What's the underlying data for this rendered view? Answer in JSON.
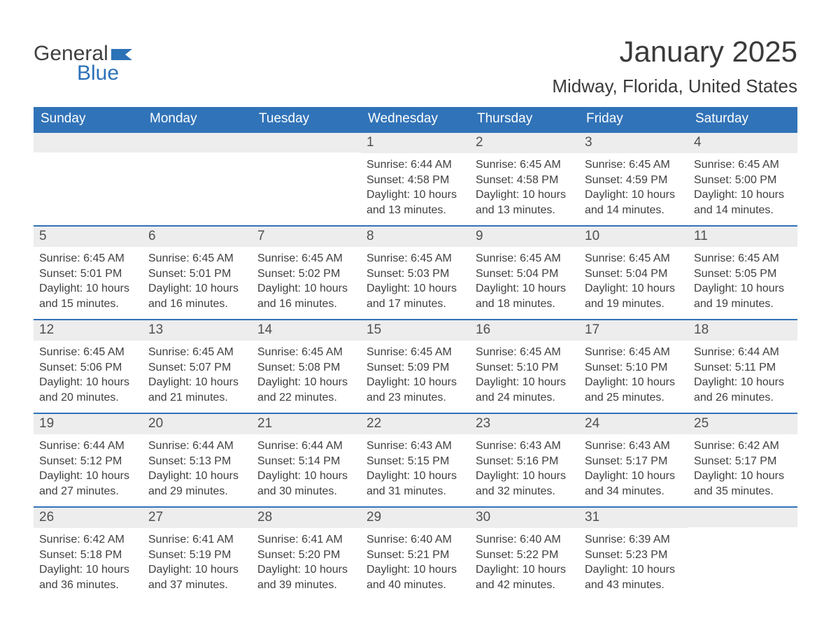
{
  "brand": {
    "text1": "General",
    "text2": "Blue",
    "flag_color": "#2c72b8"
  },
  "title": "January 2025",
  "location": "Midway, Florida, United States",
  "colors": {
    "header_bg": "#3173b8",
    "header_text": "#ffffff",
    "daynum_bg": "#ededed",
    "row_border": "#3173b8",
    "body_text": "#404040",
    "page_bg": "#ffffff"
  },
  "day_headers": [
    "Sunday",
    "Monday",
    "Tuesday",
    "Wednesday",
    "Thursday",
    "Friday",
    "Saturday"
  ],
  "weeks": [
    [
      {
        "n": "",
        "sunrise": "",
        "sunset": "",
        "daylight": ""
      },
      {
        "n": "",
        "sunrise": "",
        "sunset": "",
        "daylight": ""
      },
      {
        "n": "",
        "sunrise": "",
        "sunset": "",
        "daylight": ""
      },
      {
        "n": "1",
        "sunrise": "Sunrise: 6:44 AM",
        "sunset": "Sunset: 4:58 PM",
        "daylight": "Daylight: 10 hours and 13 minutes."
      },
      {
        "n": "2",
        "sunrise": "Sunrise: 6:45 AM",
        "sunset": "Sunset: 4:58 PM",
        "daylight": "Daylight: 10 hours and 13 minutes."
      },
      {
        "n": "3",
        "sunrise": "Sunrise: 6:45 AM",
        "sunset": "Sunset: 4:59 PM",
        "daylight": "Daylight: 10 hours and 14 minutes."
      },
      {
        "n": "4",
        "sunrise": "Sunrise: 6:45 AM",
        "sunset": "Sunset: 5:00 PM",
        "daylight": "Daylight: 10 hours and 14 minutes."
      }
    ],
    [
      {
        "n": "5",
        "sunrise": "Sunrise: 6:45 AM",
        "sunset": "Sunset: 5:01 PM",
        "daylight": "Daylight: 10 hours and 15 minutes."
      },
      {
        "n": "6",
        "sunrise": "Sunrise: 6:45 AM",
        "sunset": "Sunset: 5:01 PM",
        "daylight": "Daylight: 10 hours and 16 minutes."
      },
      {
        "n": "7",
        "sunrise": "Sunrise: 6:45 AM",
        "sunset": "Sunset: 5:02 PM",
        "daylight": "Daylight: 10 hours and 16 minutes."
      },
      {
        "n": "8",
        "sunrise": "Sunrise: 6:45 AM",
        "sunset": "Sunset: 5:03 PM",
        "daylight": "Daylight: 10 hours and 17 minutes."
      },
      {
        "n": "9",
        "sunrise": "Sunrise: 6:45 AM",
        "sunset": "Sunset: 5:04 PM",
        "daylight": "Daylight: 10 hours and 18 minutes."
      },
      {
        "n": "10",
        "sunrise": "Sunrise: 6:45 AM",
        "sunset": "Sunset: 5:04 PM",
        "daylight": "Daylight: 10 hours and 19 minutes."
      },
      {
        "n": "11",
        "sunrise": "Sunrise: 6:45 AM",
        "sunset": "Sunset: 5:05 PM",
        "daylight": "Daylight: 10 hours and 19 minutes."
      }
    ],
    [
      {
        "n": "12",
        "sunrise": "Sunrise: 6:45 AM",
        "sunset": "Sunset: 5:06 PM",
        "daylight": "Daylight: 10 hours and 20 minutes."
      },
      {
        "n": "13",
        "sunrise": "Sunrise: 6:45 AM",
        "sunset": "Sunset: 5:07 PM",
        "daylight": "Daylight: 10 hours and 21 minutes."
      },
      {
        "n": "14",
        "sunrise": "Sunrise: 6:45 AM",
        "sunset": "Sunset: 5:08 PM",
        "daylight": "Daylight: 10 hours and 22 minutes."
      },
      {
        "n": "15",
        "sunrise": "Sunrise: 6:45 AM",
        "sunset": "Sunset: 5:09 PM",
        "daylight": "Daylight: 10 hours and 23 minutes."
      },
      {
        "n": "16",
        "sunrise": "Sunrise: 6:45 AM",
        "sunset": "Sunset: 5:10 PM",
        "daylight": "Daylight: 10 hours and 24 minutes."
      },
      {
        "n": "17",
        "sunrise": "Sunrise: 6:45 AM",
        "sunset": "Sunset: 5:10 PM",
        "daylight": "Daylight: 10 hours and 25 minutes."
      },
      {
        "n": "18",
        "sunrise": "Sunrise: 6:44 AM",
        "sunset": "Sunset: 5:11 PM",
        "daylight": "Daylight: 10 hours and 26 minutes."
      }
    ],
    [
      {
        "n": "19",
        "sunrise": "Sunrise: 6:44 AM",
        "sunset": "Sunset: 5:12 PM",
        "daylight": "Daylight: 10 hours and 27 minutes."
      },
      {
        "n": "20",
        "sunrise": "Sunrise: 6:44 AM",
        "sunset": "Sunset: 5:13 PM",
        "daylight": "Daylight: 10 hours and 29 minutes."
      },
      {
        "n": "21",
        "sunrise": "Sunrise: 6:44 AM",
        "sunset": "Sunset: 5:14 PM",
        "daylight": "Daylight: 10 hours and 30 minutes."
      },
      {
        "n": "22",
        "sunrise": "Sunrise: 6:43 AM",
        "sunset": "Sunset: 5:15 PM",
        "daylight": "Daylight: 10 hours and 31 minutes."
      },
      {
        "n": "23",
        "sunrise": "Sunrise: 6:43 AM",
        "sunset": "Sunset: 5:16 PM",
        "daylight": "Daylight: 10 hours and 32 minutes."
      },
      {
        "n": "24",
        "sunrise": "Sunrise: 6:43 AM",
        "sunset": "Sunset: 5:17 PM",
        "daylight": "Daylight: 10 hours and 34 minutes."
      },
      {
        "n": "25",
        "sunrise": "Sunrise: 6:42 AM",
        "sunset": "Sunset: 5:17 PM",
        "daylight": "Daylight: 10 hours and 35 minutes."
      }
    ],
    [
      {
        "n": "26",
        "sunrise": "Sunrise: 6:42 AM",
        "sunset": "Sunset: 5:18 PM",
        "daylight": "Daylight: 10 hours and 36 minutes."
      },
      {
        "n": "27",
        "sunrise": "Sunrise: 6:41 AM",
        "sunset": "Sunset: 5:19 PM",
        "daylight": "Daylight: 10 hours and 37 minutes."
      },
      {
        "n": "28",
        "sunrise": "Sunrise: 6:41 AM",
        "sunset": "Sunset: 5:20 PM",
        "daylight": "Daylight: 10 hours and 39 minutes."
      },
      {
        "n": "29",
        "sunrise": "Sunrise: 6:40 AM",
        "sunset": "Sunset: 5:21 PM",
        "daylight": "Daylight: 10 hours and 40 minutes."
      },
      {
        "n": "30",
        "sunrise": "Sunrise: 6:40 AM",
        "sunset": "Sunset: 5:22 PM",
        "daylight": "Daylight: 10 hours and 42 minutes."
      },
      {
        "n": "31",
        "sunrise": "Sunrise: 6:39 AM",
        "sunset": "Sunset: 5:23 PM",
        "daylight": "Daylight: 10 hours and 43 minutes."
      },
      {
        "n": "",
        "sunrise": "",
        "sunset": "",
        "daylight": ""
      }
    ]
  ]
}
